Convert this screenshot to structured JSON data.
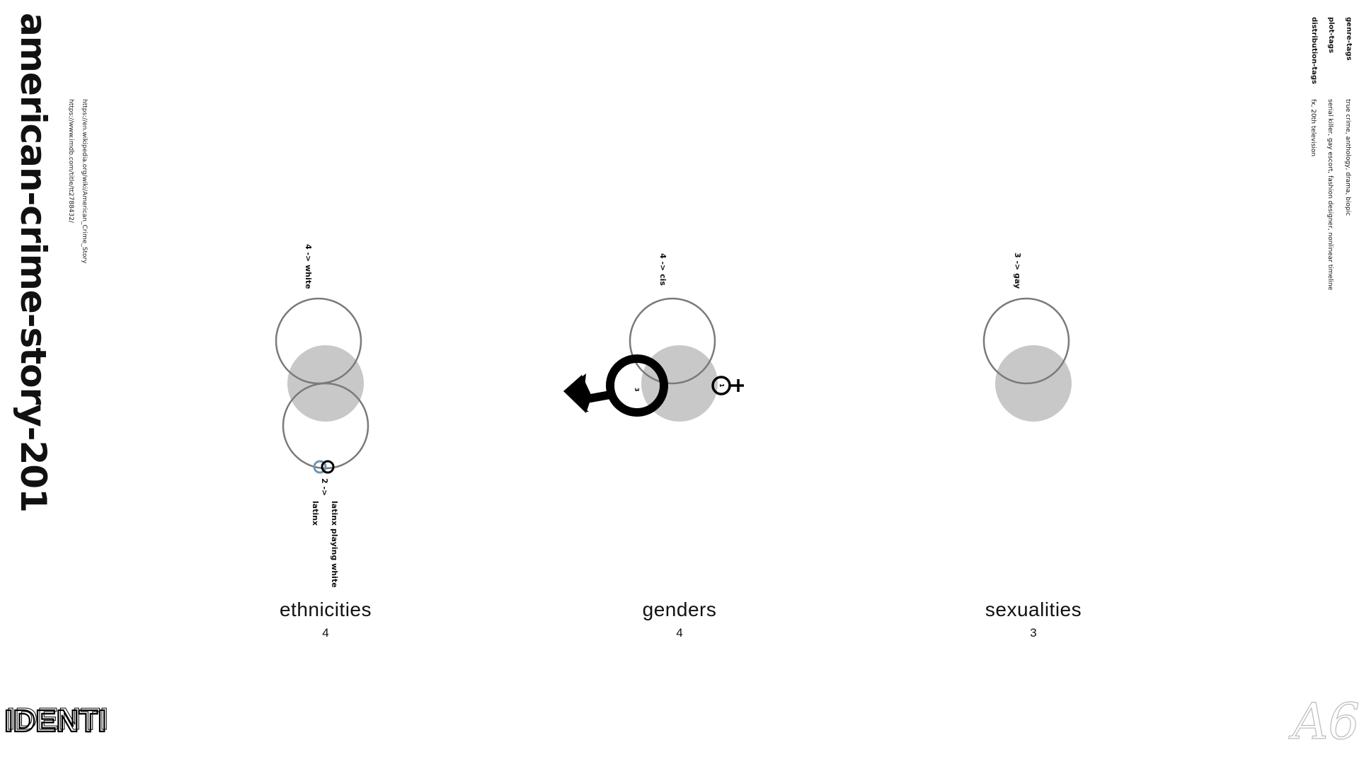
{
  "title": "american-crime-story-201",
  "links": [
    "https://en.wikipedia.org/wiki/American_Crime_Story",
    "https://www.imdb.com/title/tt2788432/"
  ],
  "tags": {
    "genre": {
      "heading": "genre-tags",
      "values": "true crime, anthology, drama, biopic"
    },
    "plot": {
      "heading": "plot-tags",
      "values": "serial killer, gay escort, fashion designer, nonlinear timeline"
    },
    "distribution": {
      "heading": "distribution-tags",
      "values": "fx, 20th television"
    }
  },
  "panels": {
    "ethnicities": {
      "title": "ethnicities",
      "count": "4",
      "top_annotation": "4 -> white",
      "bottom_annotation_count": "2 ->",
      "bottom_annotation_line1": "latinx playing white",
      "bottom_annotation_line2": "latinx"
    },
    "genders": {
      "title": "genders",
      "count": "4",
      "top_annotation": "4 -> cis",
      "male_count": "3",
      "female_count": "1"
    },
    "sexualities": {
      "title": "sexualities",
      "count": "3",
      "top_annotation": "3 -> gay"
    }
  },
  "logo_text": "IDENTI",
  "watermark_text": "A6",
  "colors": {
    "outline": "#7a7a7a",
    "fill": "#c8c8c8",
    "ink": "#000000",
    "accent_blue": "#6f96b4"
  }
}
